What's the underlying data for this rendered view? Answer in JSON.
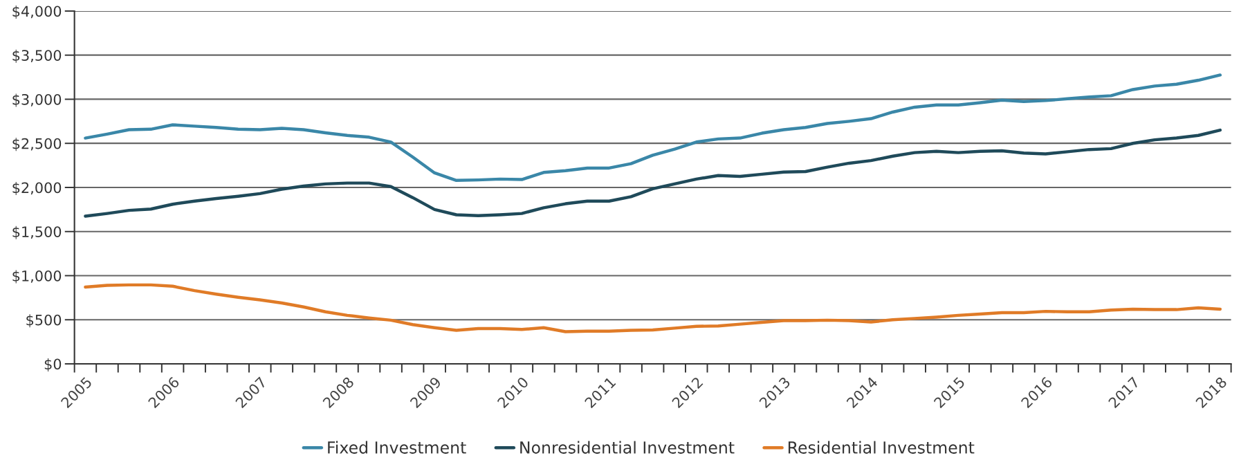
{
  "chart_data": {
    "type": "line",
    "categories": [
      "2005",
      null,
      null,
      null,
      "2006",
      null,
      null,
      null,
      "2007",
      null,
      null,
      null,
      "2008",
      null,
      null,
      null,
      "2009",
      null,
      null,
      null,
      "2010",
      null,
      null,
      null,
      "2011",
      null,
      null,
      null,
      "2012",
      null,
      null,
      null,
      "2013",
      null,
      null,
      null,
      "2014",
      null,
      null,
      null,
      "2015",
      null,
      null,
      null,
      "2016",
      null,
      null,
      null,
      "2017",
      null,
      null,
      null,
      "2018"
    ],
    "series": [
      {
        "name": "Fixed Investment",
        "color": "#3a87a8",
        "values": [
          2560,
          2605,
          2655,
          2660,
          2710,
          2695,
          2680,
          2660,
          2655,
          2670,
          2655,
          2620,
          2590,
          2570,
          2515,
          2345,
          2165,
          2080,
          2085,
          2095,
          2090,
          2170,
          2190,
          2220,
          2220,
          2270,
          2365,
          2435,
          2515,
          2550,
          2560,
          2615,
          2655,
          2680,
          2725,
          2750,
          2780,
          2855,
          2910,
          2935,
          2935,
          2960,
          2990,
          2975,
          2985,
          3005,
          3025,
          3040,
          3110,
          3150,
          3170,
          3215,
          3275
        ]
      },
      {
        "name": "Nonresidential Investment",
        "color": "#1f4a5a",
        "values": [
          1675,
          1705,
          1740,
          1755,
          1810,
          1845,
          1875,
          1900,
          1930,
          1980,
          2015,
          2040,
          2050,
          2050,
          2010,
          1885,
          1750,
          1690,
          1680,
          1690,
          1705,
          1770,
          1815,
          1845,
          1845,
          1895,
          1985,
          2040,
          2095,
          2135,
          2125,
          2150,
          2175,
          2180,
          2230,
          2275,
          2305,
          2355,
          2395,
          2410,
          2395,
          2410,
          2415,
          2390,
          2380,
          2405,
          2430,
          2440,
          2500,
          2540,
          2560,
          2590,
          2650
        ]
      },
      {
        "name": "Residential Investment",
        "color": "#e07b27",
        "values": [
          870,
          890,
          895,
          895,
          880,
          830,
          790,
          755,
          725,
          690,
          645,
          590,
          550,
          520,
          495,
          445,
          410,
          380,
          400,
          400,
          390,
          410,
          365,
          370,
          370,
          380,
          385,
          405,
          425,
          430,
          450,
          470,
          490,
          490,
          495,
          490,
          475,
          500,
          515,
          530,
          550,
          565,
          580,
          580,
          595,
          590,
          590,
          610,
          620,
          615,
          615,
          635,
          620
        ]
      }
    ],
    "ylim": [
      0,
      4000
    ],
    "yticks": [
      {
        "value": 0,
        "label": "$0"
      },
      {
        "value": 500,
        "label": "$500"
      },
      {
        "value": 1000,
        "label": "$1,000"
      },
      {
        "value": 1500,
        "label": "$1,500"
      },
      {
        "value": 2000,
        "label": "$2,000"
      },
      {
        "value": 2500,
        "label": "$2,500"
      },
      {
        "value": 3000,
        "label": "$3,000"
      },
      {
        "value": 3500,
        "label": "$3,500"
      },
      {
        "value": 4000,
        "label": "$4,000"
      }
    ],
    "grid": "y",
    "legend": "bottom",
    "line_style": "solid"
  }
}
